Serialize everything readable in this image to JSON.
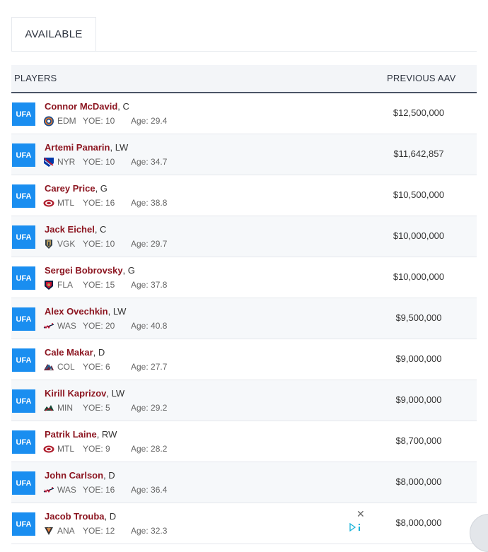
{
  "tabs": {
    "active": "AVAILABLE"
  },
  "table": {
    "col_players": "PLAYERS",
    "col_aav": "PREVIOUS AAV",
    "rows": [
      {
        "status": "UFA",
        "name": "Connor McDavid",
        "pos": ", C",
        "team": "EDM",
        "yoe": "YOE: 10",
        "age": "Age: 29.4",
        "aav": "$12,500,000",
        "logo": "oilers-logo"
      },
      {
        "status": "UFA",
        "name": "Artemi Panarin",
        "pos": ", LW",
        "team": "NYR",
        "yoe": "YOE: 10",
        "age": "Age: 34.7",
        "aav": "$11,642,857",
        "logo": "rangers-logo"
      },
      {
        "status": "UFA",
        "name": "Carey Price",
        "pos": ", G",
        "team": "MTL",
        "yoe": "YOE: 16",
        "age": "Age: 38.8",
        "aav": "$10,500,000",
        "logo": "canadiens-logo"
      },
      {
        "status": "UFA",
        "name": "Jack Eichel",
        "pos": ", C",
        "team": "VGK",
        "yoe": "YOE: 10",
        "age": "Age: 29.7",
        "aav": "$10,000,000",
        "logo": "golden-knights-logo"
      },
      {
        "status": "UFA",
        "name": "Sergei Bobrovsky",
        "pos": ", G",
        "team": "FLA",
        "yoe": "YOE: 15",
        "age": "Age: 37.8",
        "aav": "$10,000,000",
        "logo": "panthers-logo"
      },
      {
        "status": "UFA",
        "name": "Alex Ovechkin",
        "pos": ", LW",
        "team": "WAS",
        "yoe": "YOE: 20",
        "age": "Age: 40.8",
        "aav": "$9,500,000",
        "logo": "capitals-logo"
      },
      {
        "status": "UFA",
        "name": "Cale Makar",
        "pos": ", D",
        "team": "COL",
        "yoe": "YOE: 6",
        "age": "Age: 27.7",
        "aav": "$9,000,000",
        "logo": "avalanche-logo"
      },
      {
        "status": "UFA",
        "name": "Kirill Kaprizov",
        "pos": ", LW",
        "team": "MIN",
        "yoe": "YOE: 5",
        "age": "Age: 29.2",
        "aav": "$9,000,000",
        "logo": "wild-logo"
      },
      {
        "status": "UFA",
        "name": "Patrik Laine",
        "pos": ", RW",
        "team": "MTL",
        "yoe": "YOE: 9",
        "age": "Age: 28.2",
        "aav": "$8,700,000",
        "logo": "canadiens-logo"
      },
      {
        "status": "UFA",
        "name": "John Carlson",
        "pos": ", D",
        "team": "WAS",
        "yoe": "YOE: 16",
        "age": "Age: 36.4",
        "aav": "$8,000,000",
        "logo": "capitals-logo"
      },
      {
        "status": "UFA",
        "name": "Jacob Trouba",
        "pos": ", D",
        "team": "ANA",
        "yoe": "YOE: 12",
        "age": "Age: 32.3",
        "aav": "$8,000,000",
        "logo": "ducks-logo"
      }
    ]
  },
  "ad": {
    "close_label": "✕"
  },
  "colors": {
    "badge": "#1a8ef0",
    "name": "#8c1520",
    "header_rule": "#4b5566"
  }
}
